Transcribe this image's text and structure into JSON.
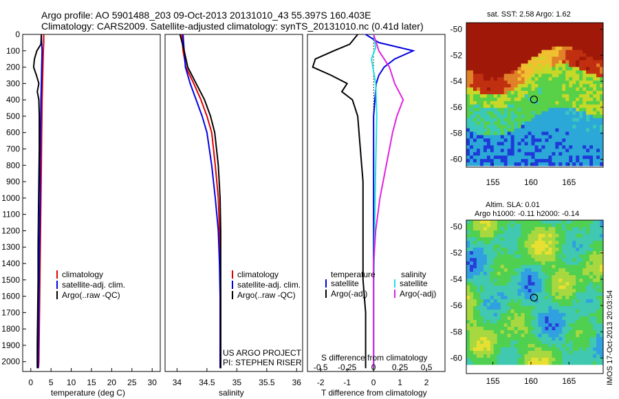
{
  "title": {
    "line1": "Argo profile: AO 5901488_203 09-Oct-2013 20131010_43 55.397S 160.403E",
    "line2": "Climatology: CARS2009. Satellite-adjusted climatology: synTS_20131010.nc (0.41d later)"
  },
  "depth_ticks": [
    "0",
    "100",
    "200",
    "300",
    "400",
    "500",
    "600",
    "700",
    "800",
    "900",
    "1000",
    "1100",
    "1200",
    "1300",
    "1400",
    "1500",
    "1600",
    "1700",
    "1800",
    "1900",
    "2000"
  ],
  "credit": {
    "line1": "US ARGO PROJECT",
    "line2": "PI: STEPHEN RISER"
  },
  "legends": {
    "climatology": "climatology",
    "satellite_adj": "satellite-adj. clim.",
    "argo_raw": "Argo(..raw -QC)",
    "temperature_header": "temperature",
    "salinity_header": "salinity",
    "satellite": "satellite",
    "argo_adj": "Argo(-adj)"
  },
  "maps": {
    "sst_title": "sat. SST: 2.58 Argo: 1.62",
    "sla_title_line1": "Altim. SLA: 0.01",
    "sla_title_line2": "Argo h1000: -0.11 h2000: -0.14",
    "lat_ticks": [
      "-50",
      "-52",
      "-54",
      "-56",
      "-58",
      "-60"
    ],
    "lon_ticks": [
      "155",
      "160",
      "165"
    ],
    "stamp": "IMOS 17-Oct-2013 20:03:54",
    "argo_lon": 160.4,
    "argo_lat": -55.4,
    "sst_colors": [
      "#1e3ad8",
      "#2ca8d8",
      "#3cc8b8",
      "#58d048",
      "#c8d828",
      "#f0c030",
      "#e08028",
      "#c03010",
      "#a01808"
    ],
    "sla_colors": [
      "#2840d8",
      "#30a0e0",
      "#40c8b0",
      "#50d050",
      "#a8d840",
      "#e8e030",
      "#f0a030"
    ]
  },
  "colors": {
    "climatology": "#e00000",
    "satellite": "#0000e0",
    "argo": "#000000",
    "salinity_satellite": "#20e0e0",
    "salinity_argo": "#e020e0"
  },
  "chart_data": [
    {
      "type": "line",
      "xlabel": "temperature (deg C)",
      "ylabel": "",
      "xlim": [
        -2,
        32
      ],
      "ylim": [
        2060,
        0
      ],
      "xticks": [
        0,
        5,
        10,
        15,
        20,
        25,
        30
      ],
      "xtick_labels": [
        "0",
        "5",
        "10",
        "15",
        "20",
        "25",
        "30"
      ],
      "series": [
        {
          "name": "climatology",
          "color": "#e00000",
          "points": [
            [
              3.2,
              0
            ],
            [
              3.2,
              50
            ],
            [
              3.1,
              100
            ],
            [
              3.0,
              200
            ],
            [
              2.9,
              300
            ],
            [
              2.8,
              400
            ],
            [
              2.7,
              600
            ],
            [
              2.6,
              800
            ],
            [
              2.5,
              1000
            ],
            [
              2.4,
              1200
            ],
            [
              2.3,
              1400
            ],
            [
              2.2,
              1600
            ],
            [
              2.1,
              1800
            ],
            [
              2.0,
              2000
            ],
            [
              1.9,
              2040
            ]
          ]
        },
        {
          "name": "satellite-adj. clim.",
          "color": "#0000e0",
          "points": [
            [
              2.6,
              0
            ],
            [
              2.7,
              50
            ],
            [
              2.8,
              100
            ],
            [
              2.7,
              200
            ],
            [
              2.6,
              300
            ],
            [
              2.5,
              400
            ],
            [
              2.4,
              600
            ],
            [
              2.3,
              800
            ],
            [
              2.3,
              1000
            ],
            [
              2.2,
              1200
            ],
            [
              2.1,
              1400
            ],
            [
              2.0,
              1600
            ],
            [
              1.9,
              1800
            ],
            [
              1.8,
              2000
            ],
            [
              1.8,
              2040
            ]
          ]
        },
        {
          "name": "Argo(..raw -QC)",
          "color": "#000000",
          "points": [
            [
              2.6,
              0
            ],
            [
              2.5,
              60
            ],
            [
              1.5,
              100
            ],
            [
              0.9,
              150
            ],
            [
              0.7,
              200
            ],
            [
              1.4,
              250
            ],
            [
              2.0,
              300
            ],
            [
              1.6,
              350
            ],
            [
              2.0,
              400
            ],
            [
              2.1,
              500
            ],
            [
              2.1,
              700
            ],
            [
              2.0,
              900
            ],
            [
              1.9,
              1100
            ],
            [
              1.8,
              1300
            ],
            [
              1.8,
              1500
            ],
            [
              1.7,
              1700
            ],
            [
              1.6,
              1900
            ],
            [
              1.6,
              2040
            ]
          ]
        }
      ]
    },
    {
      "type": "line",
      "xlabel": "salinity",
      "ylabel": "",
      "xlim": [
        33.8,
        36.1
      ],
      "ylim": [
        2060,
        0
      ],
      "xticks": [
        34,
        34.5,
        35,
        35.5,
        36
      ],
      "xtick_labels": [
        "34",
        "34.5",
        "35",
        "35.5",
        "36"
      ],
      "series": [
        {
          "name": "climatology",
          "color": "#e00000",
          "points": [
            [
              34.08,
              0
            ],
            [
              34.1,
              100
            ],
            [
              34.15,
              200
            ],
            [
              34.28,
              300
            ],
            [
              34.4,
              400
            ],
            [
              34.5,
              500
            ],
            [
              34.58,
              600
            ],
            [
              34.64,
              800
            ],
            [
              34.69,
              1000
            ],
            [
              34.71,
              1200
            ],
            [
              34.72,
              1400
            ],
            [
              34.73,
              1600
            ],
            [
              34.73,
              2040
            ]
          ]
        },
        {
          "name": "satellite-adj. clim.",
          "color": "#0000e0",
          "points": [
            [
              34.1,
              0
            ],
            [
              34.12,
              100
            ],
            [
              34.14,
              200
            ],
            [
              34.22,
              300
            ],
            [
              34.32,
              400
            ],
            [
              34.42,
              500
            ],
            [
              34.5,
              600
            ],
            [
              34.58,
              800
            ],
            [
              34.64,
              1000
            ],
            [
              34.69,
              1200
            ],
            [
              34.71,
              1400
            ],
            [
              34.72,
              1600
            ],
            [
              34.72,
              2040
            ]
          ]
        },
        {
          "name": "Argo(..raw -QC)",
          "color": "#000000",
          "points": [
            [
              34.05,
              0
            ],
            [
              34.12,
              100
            ],
            [
              34.18,
              200
            ],
            [
              34.32,
              300
            ],
            [
              34.46,
              400
            ],
            [
              34.56,
              500
            ],
            [
              34.63,
              600
            ],
            [
              34.69,
              800
            ],
            [
              34.72,
              1000
            ],
            [
              34.73,
              1200
            ],
            [
              34.73,
              1400
            ],
            [
              34.73,
              1600
            ],
            [
              34.73,
              2040
            ]
          ]
        }
      ]
    },
    {
      "type": "line",
      "xlabel": "T difference from climatology",
      "ylabel": "",
      "top_axis_label": "S difference from climatology",
      "xlim": [
        -2.5,
        2.7
      ],
      "ylim": [
        2060,
        0
      ],
      "xticks": [
        -2,
        -1,
        0,
        1,
        2
      ],
      "xtick_labels": [
        "-2",
        "-1",
        "0",
        "1",
        "2"
      ],
      "top_xticks": [
        -0.5,
        -0.25,
        0,
        0.25,
        0.5
      ],
      "top_xtick_labels": [
        "-0.5",
        "-0.25",
        "0",
        "0.25",
        "0.5"
      ],
      "top_xlim": [
        -0.625,
        0.675
      ],
      "series": [
        {
          "name": "temperature satellite",
          "axis": "T",
          "color": "#0000e0",
          "points": [
            [
              -0.3,
              0
            ],
            [
              0.2,
              50
            ],
            [
              1.5,
              100
            ],
            [
              0.8,
              150
            ],
            [
              0.4,
              200
            ],
            [
              0.2,
              250
            ],
            [
              0.1,
              300
            ],
            [
              0,
              500
            ],
            [
              0,
              800
            ],
            [
              0,
              1200
            ],
            [
              0,
              1600
            ],
            [
              0,
              2040
            ]
          ]
        },
        {
          "name": "temperature Argo(-adj)",
          "axis": "T",
          "color": "#000000",
          "points": [
            [
              -0.6,
              0
            ],
            [
              -0.9,
              60
            ],
            [
              -1.5,
              100
            ],
            [
              -2.2,
              150
            ],
            [
              -2.3,
              200
            ],
            [
              -1.6,
              250
            ],
            [
              -1.0,
              300
            ],
            [
              -1.2,
              350
            ],
            [
              -0.8,
              400
            ],
            [
              -0.6,
              500
            ],
            [
              -0.5,
              700
            ],
            [
              -0.4,
              900
            ],
            [
              -0.4,
              1100
            ],
            [
              -0.4,
              1300
            ],
            [
              -0.4,
              1500
            ],
            [
              -0.3,
              1700
            ],
            [
              -0.3,
              1900
            ],
            [
              -0.3,
              2040
            ]
          ]
        },
        {
          "name": "salinity satellite",
          "axis": "S",
          "color": "#20e0e0",
          "points": [
            [
              0.0,
              0
            ],
            [
              0.02,
              80
            ],
            [
              -0.02,
              150
            ],
            [
              0.02,
              300
            ],
            [
              0.03,
              500
            ],
            [
              0.02,
              800
            ],
            [
              0.01,
              1200
            ],
            [
              0.0,
              1600
            ],
            [
              0.0,
              2040
            ]
          ]
        },
        {
          "name": "salinity Argo(-adj)",
          "axis": "S",
          "color": "#e020e0",
          "points": [
            [
              0.0,
              0
            ],
            [
              0.05,
              100
            ],
            [
              0.15,
              200
            ],
            [
              0.2,
              300
            ],
            [
              0.28,
              400
            ],
            [
              0.22,
              500
            ],
            [
              0.18,
              600
            ],
            [
              0.12,
              800
            ],
            [
              0.06,
              1000
            ],
            [
              0.02,
              1200
            ],
            [
              0.0,
              1400
            ],
            [
              0.0,
              2040
            ]
          ]
        }
      ]
    },
    {
      "type": "heatmap",
      "title": "sat. SST: 2.58 Argo: 1.62",
      "xlim": [
        151.5,
        169.5
      ],
      "ylim": [
        -60.5,
        -49.5
      ],
      "xticks": [
        155,
        160,
        165
      ],
      "yticks": [
        -50,
        -52,
        -54,
        -56,
        -58,
        -60
      ]
    },
    {
      "type": "heatmap",
      "title": "Altim. SLA: 0.01 / Argo h1000: -0.11 h2000: -0.14",
      "xlim": [
        151.5,
        169.5
      ],
      "ylim": [
        -60.5,
        -49.5
      ],
      "xticks": [
        155,
        160,
        165
      ],
      "yticks": [
        -50,
        -52,
        -54,
        -56,
        -58,
        -60
      ]
    }
  ]
}
